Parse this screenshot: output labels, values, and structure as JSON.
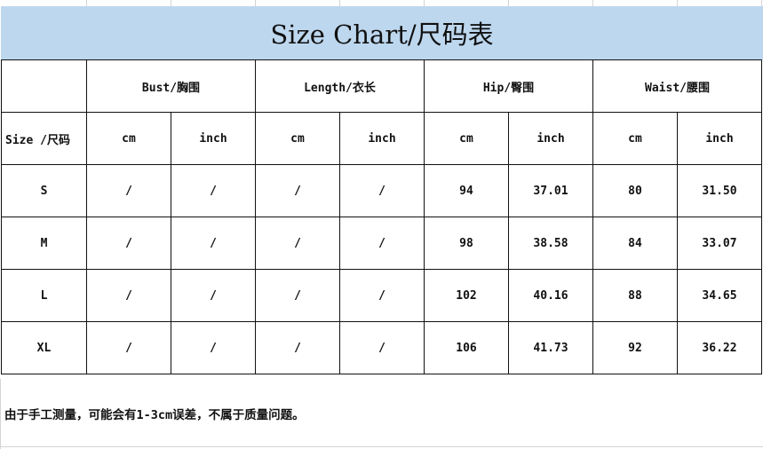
{
  "title": "Size Chart/尺码表",
  "groups": [
    "Bust/胸围",
    "Length/衣长",
    "Hip/臀围",
    "Waist/腰围"
  ],
  "size_label": "Size /尺码",
  "units": [
    "cm",
    "inch",
    "cm",
    "inch",
    "cm",
    "inch",
    "cm",
    "inch"
  ],
  "rows": [
    {
      "size": "S",
      "values": [
        "/",
        "/",
        "/",
        "/",
        "94",
        "37.01",
        "80",
        "31.50"
      ]
    },
    {
      "size": "M",
      "values": [
        "/",
        "/",
        "/",
        "/",
        "98",
        "38.58",
        "84",
        "33.07"
      ]
    },
    {
      "size": "L",
      "values": [
        "/",
        "/",
        "/",
        "/",
        "102",
        "40.16",
        "88",
        "34.65"
      ]
    },
    {
      "size": "XL",
      "values": [
        "/",
        "/",
        "/",
        "/",
        "106",
        "41.73",
        "92",
        "36.22"
      ]
    }
  ],
  "note": "由于手工测量，可能会有1-3cm误差，不属于质量问题。",
  "colors": {
    "title_bg": "#bdd7ee",
    "border": "#111111"
  }
}
